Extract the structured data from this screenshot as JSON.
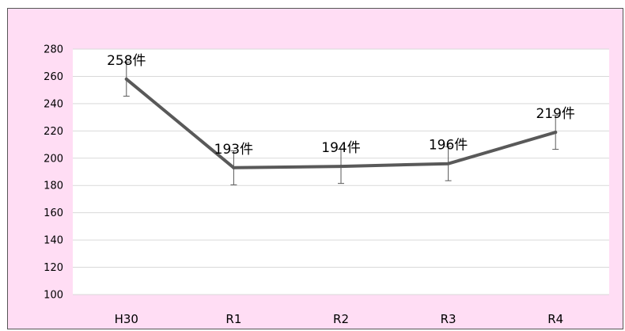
{
  "chart_data": {
    "type": "line",
    "categories": [
      "H30",
      "R1",
      "R2",
      "R3",
      "R4"
    ],
    "series": [
      {
        "values": [
          258,
          193,
          194,
          196,
          219
        ],
        "error": [
          12.5,
          12.5,
          12.5,
          12.5,
          12.5
        ]
      }
    ],
    "data_labels": [
      "258件",
      "193件",
      "194件",
      "196件",
      "219件"
    ],
    "yticks": [
      "100",
      "120",
      "140",
      "160",
      "180",
      "200",
      "220",
      "240",
      "260",
      "280"
    ],
    "ylim": [
      100,
      280
    ],
    "grid": true,
    "legend": "none",
    "title": "",
    "xlabel": "",
    "ylabel": "",
    "colors": {
      "frame_background": "#ffddf4",
      "plot_background": "#ffffff",
      "line": "#595959",
      "gridline": "#d9d9d9",
      "error_bar": "#595959"
    }
  }
}
